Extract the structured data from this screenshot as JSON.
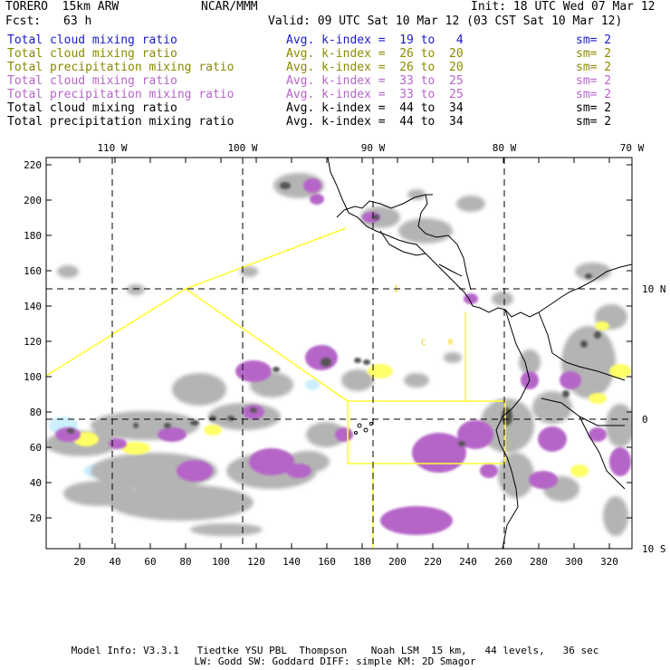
{
  "header": {
    "model": "TORERO  15km ARW",
    "center": "NCAR/MMM",
    "init": "Init: 18 UTC Wed 07 Mar 12",
    "fcst_label": "Fcst:",
    "fcst_value": "63 h",
    "valid": "Valid: 09 UTC Sat 10 Mar 12 (03 CST Sat 10 Mar 12)"
  },
  "legend": [
    {
      "name": "Total cloud mixing ratio",
      "avg": "Avg. k-index =  19 to   4",
      "sm": "sm= 2",
      "color": "#1a1acc"
    },
    {
      "name": "Total cloud mixing ratio",
      "avg": "Avg. k-index =  26 to  20",
      "sm": "sm= 2",
      "color": "#8a8a00"
    },
    {
      "name": "Total precipitation mixing ratio",
      "avg": "Avg. k-index =  26 to  20",
      "sm": "sm= 2",
      "color": "#8a8a00"
    },
    {
      "name": "Total cloud mixing ratio",
      "avg": "Avg. k-index =  33 to  25",
      "sm": "sm= 2",
      "color": "#b565c8"
    },
    {
      "name": "Total precipitation mixing ratio",
      "avg": "Avg. k-index =  33 to  25",
      "sm": "sm= 2",
      "color": "#b565c8"
    },
    {
      "name": "Total cloud mixing ratio",
      "avg": "Avg. k-index =  44 to  34",
      "sm": "sm= 2",
      "color": "#000000"
    },
    {
      "name": "Total precipitation mixing ratio",
      "avg": "Avg. k-index =  44 to  34",
      "sm": "sm= 2",
      "color": "#000000"
    }
  ],
  "map": {
    "lon_labels": [
      "110 W",
      "100 W",
      "90 W",
      "80 W",
      "70 W"
    ],
    "lat_labels": [
      "10 N",
      "0",
      "10 S"
    ],
    "y_ticks": [
      "220",
      "200",
      "180",
      "160",
      "140",
      "120",
      "100",
      "80",
      "60",
      "40",
      "20"
    ],
    "x_ticks": [
      "20",
      "40",
      "60",
      "80",
      "100",
      "120",
      "140",
      "160",
      "180",
      "200",
      "220",
      "240",
      "260",
      "280",
      "300",
      "320"
    ],
    "region_labels": [
      "I",
      "C",
      "R"
    ],
    "colors": {
      "gray_light": "#b4b4b4",
      "gray_dark": "#555555",
      "violet": "#b565c8",
      "yellow": "#ffff66",
      "cyan": "#ccf0ff",
      "boxes": "#ffff33"
    }
  },
  "footer": {
    "line1": "Model Info: V3.3.1   Tiedtke YSU PBL  Thompson    Noah LSM  15 km,   44 levels,   36 sec",
    "line2": "LW: Godd SW: Goddard DIFF: simple KM: 2D Smagor"
  }
}
